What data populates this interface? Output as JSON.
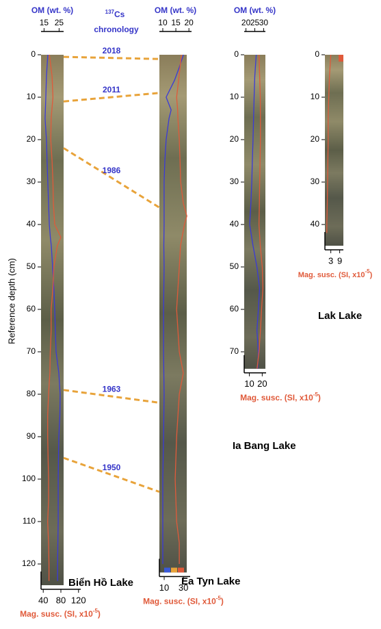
{
  "y_label": "Reference depth (cm)",
  "chronology": {
    "isotope": "137",
    "element": "Cs",
    "word": "chronology",
    "color": "#e8a33a",
    "label_color": "#3535c8",
    "markers": [
      {
        "label": "2018",
        "depth_left": 0.5,
        "depth_right": 1
      },
      {
        "label": "2011",
        "depth_left": 11,
        "depth_right": 9
      },
      {
        "label": "1986",
        "depth_left": 22,
        "depth_right": 36
      },
      {
        "label": "1963",
        "depth_left": 79,
        "depth_right": 82
      },
      {
        "label": "1950",
        "depth_left": 95,
        "depth_right": 103
      }
    ]
  },
  "chart_data": [
    {
      "type": "line",
      "title": "Biển Hồ Lake",
      "ylim": [
        0,
        125
      ],
      "yticks": [
        0,
        10,
        20,
        30,
        40,
        50,
        60,
        70,
        80,
        90,
        100,
        110,
        120
      ],
      "depth": [
        0,
        5,
        10,
        15,
        20,
        25,
        30,
        35,
        40,
        43,
        45,
        50,
        55,
        60,
        65,
        70,
        75,
        80,
        85,
        90,
        95,
        100,
        105,
        110,
        115,
        120,
        124
      ],
      "om_axis": {
        "label": "OM (wt. %)",
        "xlim": [
          13,
          28
        ],
        "xticks": [
          15,
          25
        ]
      },
      "mag_axis": {
        "label": "Mag. susc. (SI, x10",
        "label_sup": "-5",
        "label_end": ")",
        "xlim": [
          35,
          125
        ],
        "xticks": [
          40,
          80,
          120
        ]
      },
      "series": [
        {
          "axis": "om",
          "color": "#3a3ad8",
          "values": [
            17.5,
            16.6,
            16.2,
            15.7,
            16.6,
            17,
            17.5,
            18,
            18.5,
            19.2,
            19.8,
            20.7,
            21.5,
            22.1,
            22.5,
            23,
            24.8,
            25.7,
            25.5,
            24.8,
            24.6,
            24.4,
            24.4,
            24.4,
            24.2,
            24,
            24
          ]
        },
        {
          "axis": "mag",
          "color": "#e05a3a",
          "values": [
            54,
            60,
            62,
            58,
            57,
            60,
            62,
            63,
            66,
            80,
            72,
            64,
            62,
            58,
            58,
            56,
            55,
            52,
            50,
            50,
            51,
            52,
            52,
            50,
            52,
            53,
            53
          ]
        }
      ]
    },
    {
      "type": "line",
      "title": "Ea Tyn Lake",
      "ylim": [
        0,
        122
      ],
      "depth": [
        0,
        3,
        6,
        10,
        13,
        15,
        20,
        25,
        30,
        35,
        38,
        40,
        45,
        50,
        60,
        70,
        75,
        80,
        90,
        100,
        110,
        115,
        120
      ],
      "om_axis": {
        "label": "OM (wt. %)",
        "xlim": [
          8.7,
          21
        ],
        "xticks": [
          10,
          15,
          20
        ]
      },
      "mag_axis": {
        "label": "Mag. susc. (SI, x10",
        "label_sup": "-5",
        "label_end": ")",
        "xlim": [
          5,
          37
        ],
        "xticks": [
          10,
          30
        ]
      },
      "series": [
        {
          "axis": "om",
          "color": "#3a3ad8",
          "values": [
            17.9,
            16.3,
            14.5,
            11.3,
            13.2,
            12.4,
            11.3,
            10.8,
            10.5,
            10.5,
            10.5,
            10.5,
            10.4,
            10.5,
            10.3,
            10.3,
            10.4,
            10.5,
            10.3,
            10,
            10,
            10,
            10
          ]
        },
        {
          "axis": "mag",
          "color": "#e05a3a",
          "values": [
            27.9,
            26.5,
            25,
            22.9,
            24,
            24.3,
            25.7,
            26.5,
            27.1,
            29.9,
            33.6,
            31,
            27,
            25.7,
            22.9,
            25.7,
            29.9,
            25.7,
            22.9,
            21.4,
            22.9,
            25.7,
            25.7
          ]
        }
      ]
    },
    {
      "type": "line",
      "title": "Ia Bang Lake",
      "ylim": [
        0,
        74
      ],
      "yticks": [
        0,
        10,
        20,
        30,
        40,
        50,
        60,
        70
      ],
      "depth": [
        0,
        5,
        10,
        15,
        20,
        25,
        30,
        35,
        40,
        45,
        50,
        55,
        60,
        65,
        70,
        74
      ],
      "om_axis": {
        "label": "OM (wt. %)",
        "xlim": [
          19,
          31
        ],
        "xticks": [
          20,
          25,
          30
        ]
      },
      "mag_axis": {
        "label": "Mag. susc. (SI, x10",
        "label_sup": "-5",
        "label_end": ")",
        "xlim": [
          6,
          23
        ],
        "xticks": [
          10,
          20
        ]
      },
      "series": [
        {
          "axis": "om",
          "color": "#3a3ad8",
          "values": [
            25.8,
            25,
            24.6,
            24.3,
            24,
            23.6,
            23.3,
            22.8,
            22.1,
            24,
            26.2,
            27.7,
            27,
            26.2,
            27,
            26.6
          ]
        },
        {
          "axis": "mag",
          "color": "#e05a3a",
          "values": [
            17.5,
            18,
            18.5,
            18.6,
            18.6,
            18.3,
            18,
            17.8,
            17.5,
            18.5,
            20,
            20.5,
            19.5,
            18.6,
            17.5,
            16
          ]
        }
      ]
    },
    {
      "type": "line",
      "title": "Lak Lake",
      "ylim": [
        0,
        45
      ],
      "yticks": [
        0,
        10,
        20,
        30,
        40
      ],
      "depth": [
        0,
        5,
        10,
        15,
        20,
        25,
        30,
        35,
        40,
        42
      ],
      "mag_axis": {
        "label": "Mag. susc. (SI, x10",
        "label_sup": "-5",
        "label_end": ")",
        "xlim": [
          -1,
          11.5
        ],
        "xticks": [
          3,
          9
        ]
      },
      "series": [
        {
          "axis": "mag",
          "color": "#e05a3a",
          "values": [
            3,
            2.1,
            1.6,
            1.2,
            1.2,
            1,
            0.8,
            0.6,
            0.3,
            0.3
          ]
        }
      ]
    }
  ]
}
